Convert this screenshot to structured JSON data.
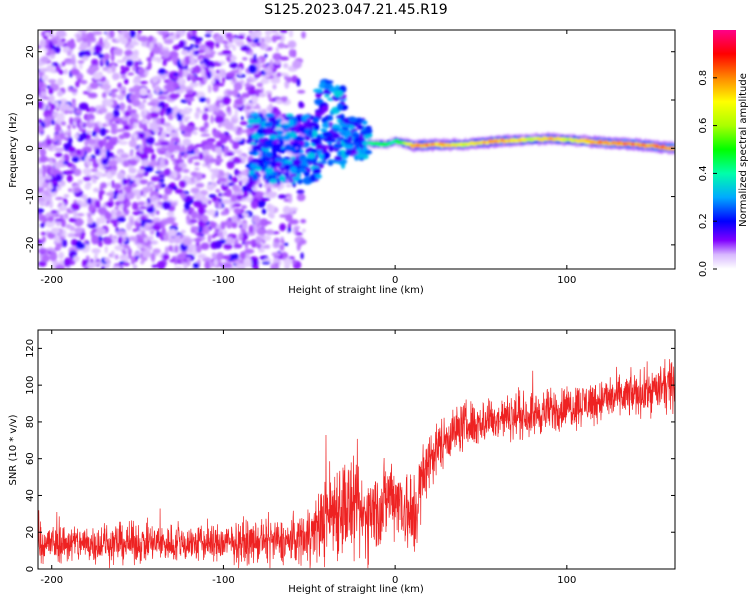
{
  "title": "S125.2023.047.21.45.R19",
  "colors": {
    "snr_line": "#ee2222",
    "background": "#ffffff",
    "axis": "#000000"
  },
  "chart_data": [
    {
      "type": "heatmap",
      "name": "spectrogram",
      "xlabel": "Height of straight line (km)",
      "ylabel": "Frequency (Hz)",
      "xlim": [
        -208,
        163
      ],
      "ylim": [
        -25,
        24.5
      ],
      "xticks": [
        -200,
        -100,
        0,
        100
      ],
      "xtick_labels": [
        "-200",
        "-100",
        "0",
        "100"
      ],
      "yticks": [
        20,
        10,
        0,
        -10,
        -20
      ],
      "ytick_labels": [
        "20",
        "10",
        "0",
        "-10",
        "-20"
      ],
      "colorbar": {
        "label": "Normalized spectral amplitude",
        "range": [
          0,
          1
        ],
        "ticks": [
          0.0,
          0.2,
          0.4,
          0.6,
          0.8
        ],
        "tick_labels": [
          "0.0",
          "0.2",
          "0.4",
          "0.6",
          "0.8"
        ]
      },
      "description_of_features": "noise speckle from -208 to about -55 km; turbulent region -80 to -15 km; narrow carrier band near 0-2 Hz from -15 to 163 km",
      "carrier_track": {
        "x": [
          -15,
          -5,
          0,
          10,
          20,
          40,
          60,
          80,
          90,
          100,
          120,
          140,
          163
        ],
        "freq": [
          1.0,
          0.8,
          1.5,
          0.6,
          0.7,
          0.8,
          1.5,
          1.8,
          2.0,
          1.8,
          1.2,
          0.8,
          0.0
        ],
        "amplitude": [
          0.45,
          0.5,
          0.45,
          0.8,
          0.85,
          0.7,
          0.85,
          0.7,
          0.8,
          0.7,
          0.85,
          0.85,
          0.85
        ]
      }
    },
    {
      "type": "line",
      "name": "snr",
      "xlabel": "Height of straight line (km)",
      "ylabel": "SNR (10 * v/v)",
      "xlim": [
        -208,
        163
      ],
      "ylim": [
        0,
        130
      ],
      "xticks": [
        -200,
        -100,
        0,
        100
      ],
      "xtick_labels": [
        "-200",
        "-100",
        "0",
        "100"
      ],
      "yticks": [
        0,
        20,
        40,
        60,
        80,
        100,
        120
      ],
      "ytick_labels": [
        "0",
        "20",
        "40",
        "60",
        "80",
        "100",
        "120"
      ],
      "trend": {
        "x": [
          -208,
          -100,
          -60,
          -45,
          -38,
          -30,
          -20,
          -10,
          -2,
          5,
          10,
          15,
          20,
          30,
          40,
          60,
          80,
          100,
          120,
          140,
          163
        ],
        "y": [
          14,
          14,
          15,
          22,
          32,
          35,
          28,
          32,
          42,
          35,
          25,
          45,
          60,
          72,
          78,
          82,
          84,
          88,
          92,
          95,
          100
        ],
        "noise_amplitude": [
          8,
          8,
          9,
          14,
          20,
          22,
          18,
          18,
          16,
          16,
          22,
          16,
          12,
          10,
          10,
          9,
          9,
          9,
          9,
          9,
          10
        ]
      }
    }
  ]
}
